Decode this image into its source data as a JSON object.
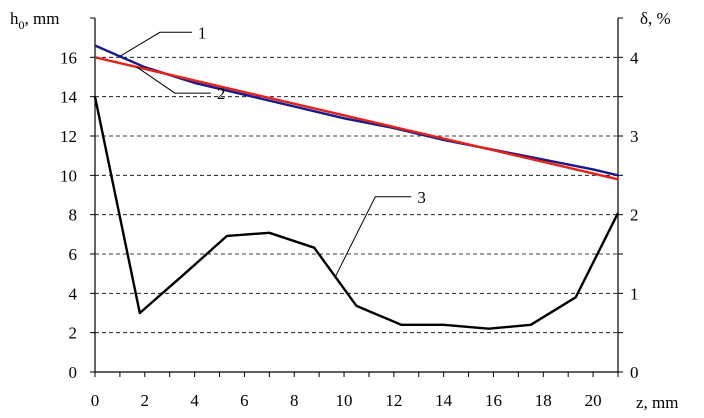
{
  "chart_data": {
    "type": "line",
    "xlabel": "z, mm",
    "ylabel_left": "h",
    "ylabel_left_sub": "0",
    "ylabel_left_suffix": ", mm",
    "ylabel_right": "δ, %",
    "xlim": [
      0,
      21
    ],
    "ylim_left": [
      0,
      18
    ],
    "ylim_right": [
      0,
      4.5
    ],
    "x_ticks": [
      0,
      2,
      4,
      6,
      8,
      10,
      12,
      14,
      16,
      18,
      20
    ],
    "y_left_ticks": [
      0,
      2,
      4,
      6,
      8,
      10,
      12,
      14,
      16
    ],
    "y_right_ticks": [
      0,
      1,
      2,
      3,
      4
    ],
    "grid": "horizontal-dashed",
    "series": [
      {
        "name": "1",
        "axis": "left",
        "color": "#1a1a8c",
        "x": [
          0,
          2,
          4,
          6,
          8,
          10,
          12,
          14,
          16,
          18,
          20,
          21
        ],
        "y": [
          16.6,
          15.5,
          14.7,
          14.1,
          13.5,
          12.9,
          12.4,
          11.8,
          11.3,
          10.8,
          10.3,
          10.0
        ]
      },
      {
        "name": "2",
        "axis": "left",
        "color": "#e8201a",
        "x": [
          0,
          21
        ],
        "y": [
          16.0,
          9.8
        ]
      },
      {
        "name": "3",
        "axis": "right",
        "color": "#000000",
        "x": [
          0,
          1.8,
          3.6,
          5.3,
          7.0,
          8.8,
          10.5,
          12.3,
          14.0,
          15.8,
          17.5,
          19.3,
          21
        ],
        "y": [
          3.5,
          0.75,
          1.25,
          1.73,
          1.77,
          1.58,
          0.84,
          0.6,
          0.6,
          0.55,
          0.6,
          0.95,
          2.02
        ]
      }
    ],
    "curve_labels": [
      {
        "text": "1",
        "series": 0
      },
      {
        "text": "2",
        "series": 1
      },
      {
        "text": "3",
        "series": 2
      }
    ]
  }
}
